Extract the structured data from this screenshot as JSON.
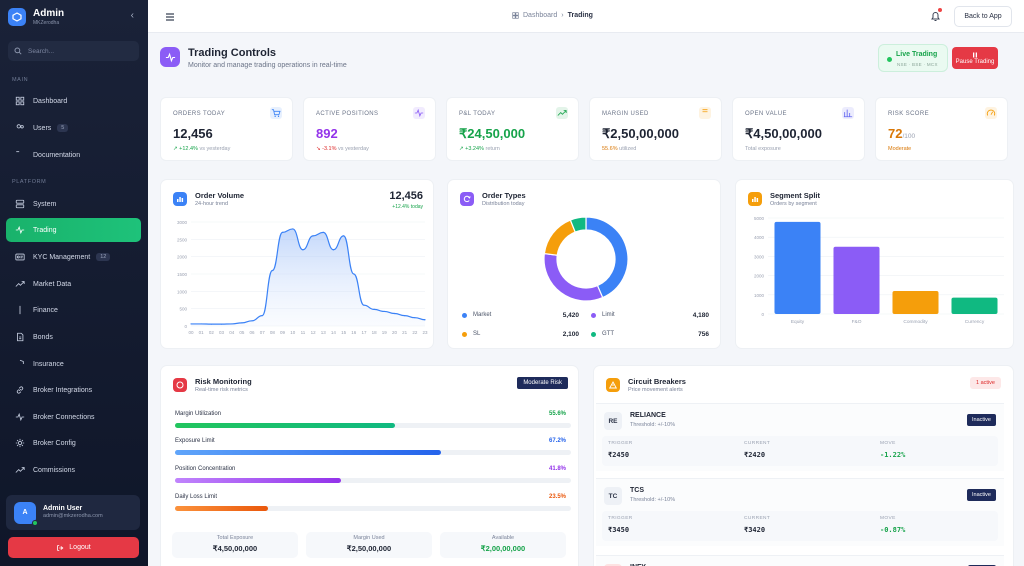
{
  "sidebar": {
    "brand_title": "Admin",
    "brand_sub": "MKZerodha",
    "search_placeholder": "Search...",
    "section_main": "MAIN",
    "section_platform": "PLATFORM",
    "items": [
      {
        "label": "Dashboard",
        "icon": "grid-icon"
      },
      {
        "label": "Users",
        "icon": "users-icon",
        "badge": "5"
      },
      {
        "label": "Documentation",
        "icon": "book-icon"
      },
      {
        "label": "System",
        "icon": "server-icon"
      },
      {
        "label": "Trading",
        "icon": "activity-icon",
        "active": true
      },
      {
        "label": "KYC Management",
        "icon": "id-card-icon",
        "badge": "12"
      },
      {
        "label": "Market Data",
        "icon": "trend-icon"
      },
      {
        "label": "Finance",
        "icon": "dollar-icon"
      },
      {
        "label": "Bonds",
        "icon": "doc-icon"
      },
      {
        "label": "Insurance",
        "icon": "shield-icon"
      },
      {
        "label": "Broker Integrations",
        "icon": "link-icon"
      },
      {
        "label": "Broker Connections",
        "icon": "activity-icon"
      },
      {
        "label": "Broker Config",
        "icon": "gear-icon"
      },
      {
        "label": "Commissions",
        "icon": "trend-icon"
      }
    ],
    "user": {
      "initial": "A",
      "name": "Admin User",
      "email": "admin@mkzerodha.com"
    },
    "logout_label": "Logout"
  },
  "topbar": {
    "breadcrumb_root": "Dashboard",
    "breadcrumb_current": "Trading",
    "back_label": "Back to App"
  },
  "header": {
    "title": "Trading Controls",
    "subtitle": "Monitor and manage trading operations in real-time",
    "live_label": "Live Trading",
    "live_sub": "NSE · BSE · MCX",
    "pause_label": "Pause Trading"
  },
  "stats": [
    {
      "label": "ORDERS TODAY",
      "value": "12,456",
      "change": "↗ +12.4%",
      "note": "vs yesterday",
      "trend": "up",
      "icon": "cart-icon",
      "color": "#3b82f6"
    },
    {
      "label": "ACTIVE POSITIONS",
      "value": "892",
      "change": "↘ -3.1%",
      "note": "vs yesterday",
      "trend": "down",
      "icon": "activity-icon",
      "color": "#8b5cf6"
    },
    {
      "label": "P&L TODAY",
      "value": "₹24,50,000",
      "change": "↗ +3.24%",
      "note": "return",
      "trend": "up",
      "icon": "trend-icon",
      "color": "#16a34a"
    },
    {
      "label": "MARGIN USED",
      "value": "₹2,50,00,000",
      "change": "55.6%",
      "note": "utilized",
      "trend": "warn",
      "icon": "rupee-icon",
      "color": "#f59e0b"
    },
    {
      "label": "OPEN VALUE",
      "value": "₹4,50,00,000",
      "change": "",
      "note": "Total exposure",
      "trend": "none",
      "icon": "bar-icon",
      "color": "#6366f1"
    },
    {
      "label": "RISK SCORE",
      "value": "72",
      "suffix": "/100",
      "change": "",
      "note": "Moderate",
      "trend": "warn",
      "icon": "gauge-icon",
      "color": "#f59e0b"
    }
  ],
  "order_volume": {
    "title": "Order Volume",
    "subtitle": "24-hour trend",
    "total": "12,456",
    "change": "+12.4% today"
  },
  "order_types": {
    "title": "Order Types",
    "subtitle": "Distribution today",
    "legend": [
      {
        "name": "Market",
        "value": "5,420",
        "color": "#3b82f6"
      },
      {
        "name": "Limit",
        "value": "4,180",
        "color": "#8b5cf6"
      },
      {
        "name": "SL",
        "value": "2,100",
        "color": "#f59e0b"
      },
      {
        "name": "GTT",
        "value": "756",
        "color": "#10b981"
      }
    ]
  },
  "segment_split": {
    "title": "Segment Split",
    "subtitle": "Orders by segment"
  },
  "chart_data": [
    {
      "type": "area",
      "x": [
        "00",
        "01",
        "02",
        "03",
        "04",
        "05",
        "06",
        "07",
        "08",
        "09",
        "10",
        "11",
        "12",
        "13",
        "14",
        "15",
        "16",
        "17",
        "18",
        "19",
        "20",
        "21",
        "22",
        "23"
      ],
      "values": [
        60,
        60,
        55,
        55,
        60,
        90,
        150,
        300,
        1600,
        2700,
        2800,
        2200,
        2600,
        2700,
        2200,
        2600,
        1500,
        600,
        480,
        420,
        360,
        300,
        240,
        180
      ],
      "ylim": [
        0,
        3000
      ],
      "yticks": [
        "0",
        "500",
        "1000",
        "1500",
        "2000",
        "2500",
        "3000"
      ]
    },
    {
      "type": "pie",
      "categories": [
        "Market",
        "Limit",
        "SL",
        "GTT"
      ],
      "values": [
        5420,
        4180,
        2100,
        756
      ]
    },
    {
      "type": "bar",
      "categories": [
        "Equity",
        "F&O",
        "Commodity",
        "Currency"
      ],
      "values": [
        4800,
        3500,
        1200,
        850
      ],
      "ylim": [
        0,
        5000
      ],
      "yticks": [
        "0",
        "1000",
        "2000",
        "3000",
        "4000",
        "5000"
      ],
      "colors": [
        "#3b82f6",
        "#8b5cf6",
        "#f59e0b",
        "#10b981"
      ]
    }
  ],
  "risk": {
    "title": "Risk Monitoring",
    "subtitle": "Real-time risk metrics",
    "badge": "Moderate Risk",
    "rows": [
      {
        "label": "Margin Utilization",
        "value": "55.6%",
        "pct": 0.556,
        "color": "#22c55e",
        "color2": "#10b981",
        "text": "#16a34a"
      },
      {
        "label": "Exposure Limit",
        "value": "67.2%",
        "pct": 0.672,
        "color": "#60a5fa",
        "color2": "#2563eb",
        "text": "#2563eb"
      },
      {
        "label": "Position Concentration",
        "value": "41.8%",
        "pct": 0.418,
        "color": "#c084fc",
        "color2": "#9333ea",
        "text": "#9333ea"
      },
      {
        "label": "Daily Loss Limit",
        "value": "23.5%",
        "pct": 0.235,
        "color": "#fb923c",
        "color2": "#ea580c",
        "text": "#ea580c"
      }
    ],
    "footer": [
      {
        "label": "Total Exposure",
        "value": "₹4,50,00,000",
        "color": "#1e2433"
      },
      {
        "label": "Margin Used",
        "value": "₹2,50,00,000",
        "color": "#1e2433"
      },
      {
        "label": "Available",
        "value": "₹2,00,00,000",
        "color": "#16a34a"
      }
    ]
  },
  "circuit": {
    "title": "Circuit Breakers",
    "subtitle": "Price movement alerts",
    "badge": "1 active",
    "col_trigger": "TRIGGER",
    "col_current": "CURRENT",
    "col_move": "MOVE",
    "items": [
      {
        "sym": "RE",
        "name": "RELIANCE",
        "threshold": "Threshold: +/-10%",
        "status": "Inactive",
        "trigger": "₹2450",
        "current": "₹2420",
        "move": "-1.22%"
      },
      {
        "sym": "TC",
        "name": "TCS",
        "threshold": "Threshold: +/-10%",
        "status": "Inactive",
        "trigger": "₹3450",
        "current": "₹3420",
        "move": "-0.87%"
      },
      {
        "sym": "IN",
        "name": "INFY",
        "threshold": "",
        "status": "",
        "trigger": "",
        "current": "",
        "move": ""
      }
    ]
  }
}
